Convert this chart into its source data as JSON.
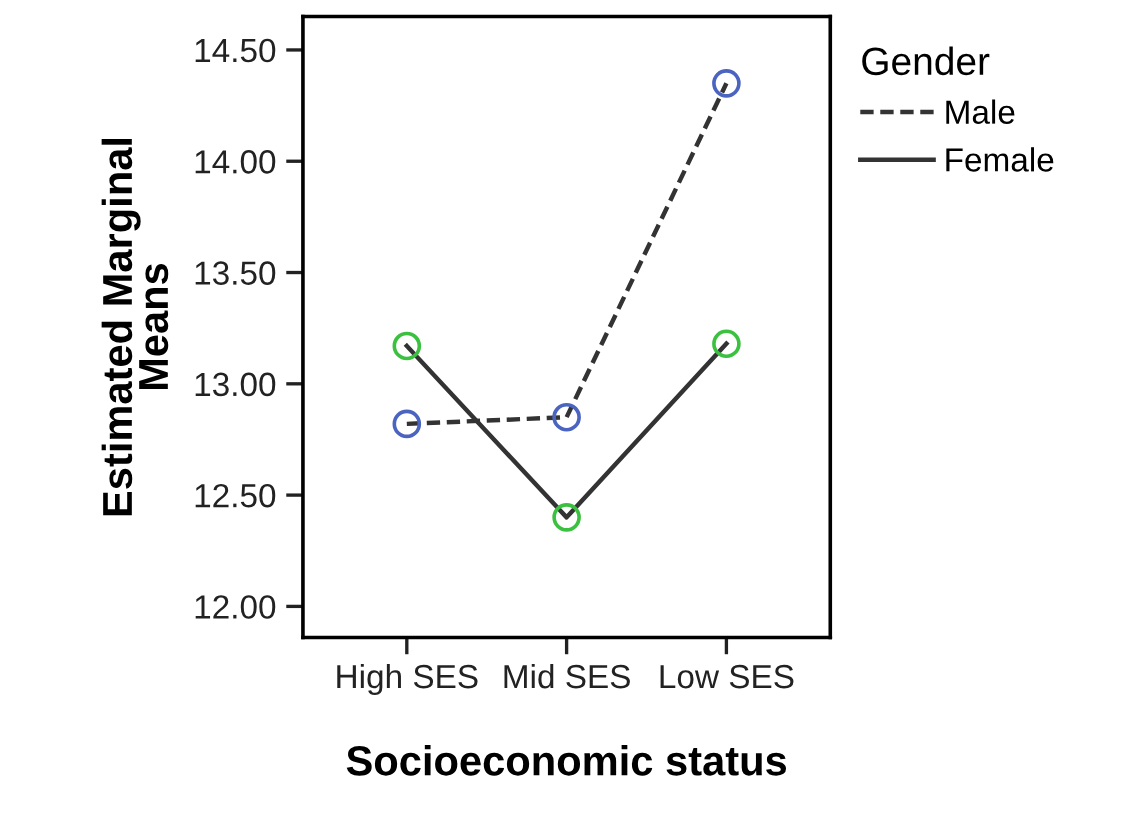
{
  "chart_data": {
    "type": "line",
    "xlabel": "Socioeconomic status",
    "ylabel": "Estimated Marginal\nMeans",
    "legend_title": "Gender",
    "categories": [
      "High SES",
      "Mid SES",
      "Low SES"
    ],
    "series": [
      {
        "name": "Male",
        "color": "#4a64c0",
        "line_style": "dashed",
        "values": [
          12.82,
          12.85,
          14.35
        ]
      },
      {
        "name": "Female",
        "color": "#3cc040",
        "line_style": "solid",
        "values": [
          13.17,
          12.4,
          13.18
        ]
      }
    ],
    "ylim": [
      11.86,
      14.65
    ],
    "yticks": [
      {
        "value": 12,
        "label": "12.00"
      },
      {
        "value": 12.5,
        "label": "12.50"
      },
      {
        "value": 13,
        "label": "13.00"
      },
      {
        "value": 13.5,
        "label": "13.50"
      },
      {
        "value": 14,
        "label": "14.00"
      },
      {
        "value": 14.5,
        "label": "14.50"
      }
    ],
    "marker": "circle",
    "grid": false,
    "legend": "top right"
  }
}
